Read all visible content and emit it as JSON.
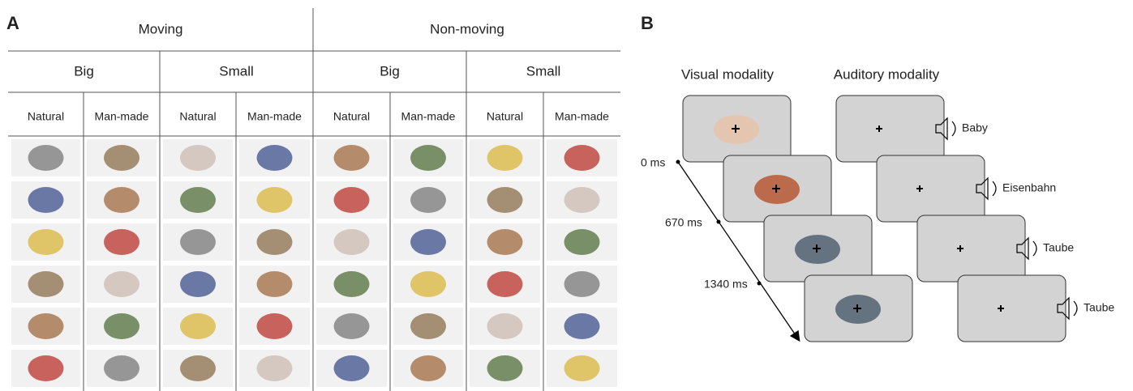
{
  "panel_a": {
    "label": "A",
    "groups": [
      "Moving",
      "Non-moving"
    ],
    "sizes": [
      "Big",
      "Small",
      "Big",
      "Small"
    ],
    "kinds": [
      "Natural",
      "Man-made",
      "Natural",
      "Man-made",
      "Natural",
      "Man-made",
      "Natural",
      "Man-made"
    ]
  },
  "panel_b": {
    "label": "B",
    "visual_title": "Visual modality",
    "auditory_title": "Auditory modality",
    "times": [
      "0 ms",
      "670 ms",
      "1340 ms"
    ],
    "words": [
      "Baby",
      "Eisenbahn",
      "Taube",
      "Taube"
    ]
  }
}
